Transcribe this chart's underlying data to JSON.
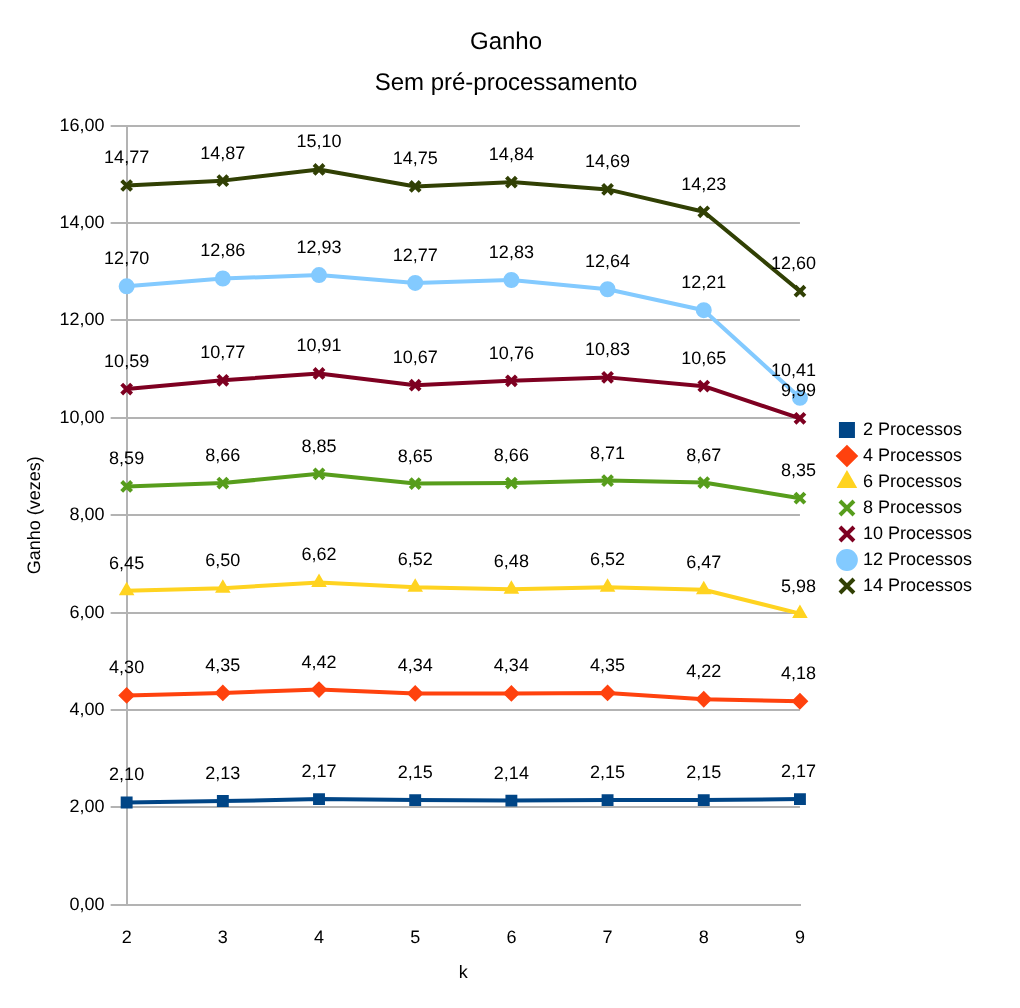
{
  "chart_data": {
    "type": "line",
    "title": "Ganho",
    "subtitle": "Sem pré-processamento",
    "xlabel": "k",
    "ylabel": "Ganho (vezes)",
    "categories": [
      "2",
      "3",
      "4",
      "5",
      "6",
      "7",
      "8",
      "9"
    ],
    "ylim": [
      0,
      16
    ],
    "yticks": [
      {
        "value": 0,
        "label": "0,00"
      },
      {
        "value": 2,
        "label": "2,00"
      },
      {
        "value": 4,
        "label": "4,00"
      },
      {
        "value": 6,
        "label": "6,00"
      },
      {
        "value": 8,
        "label": "8,00"
      },
      {
        "value": 10,
        "label": "10,00"
      },
      {
        "value": 12,
        "label": "12,00"
      },
      {
        "value": 14,
        "label": "14,00"
      },
      {
        "value": 16,
        "label": "16,00"
      }
    ],
    "grid": "y",
    "legend": "right",
    "series": [
      {
        "name": "2 Processos",
        "color": "#004586",
        "marker": "square",
        "values": [
          2.1,
          2.13,
          2.17,
          2.15,
          2.14,
          2.15,
          2.15,
          2.17
        ],
        "value_labels": [
          "2,10",
          "2,13",
          "2,17",
          "2,15",
          "2,14",
          "2,15",
          "2,15",
          "2,17"
        ]
      },
      {
        "name": "4 Processos",
        "color": "#ff420e",
        "marker": "diamond",
        "values": [
          4.3,
          4.35,
          4.42,
          4.34,
          4.34,
          4.35,
          4.22,
          4.18
        ],
        "value_labels": [
          "4,30",
          "4,35",
          "4,42",
          "4,34",
          "4,34",
          "4,35",
          "4,22",
          "4,18"
        ]
      },
      {
        "name": "6 Processos",
        "color": "#ffd320",
        "marker": "triangle",
        "values": [
          6.45,
          6.5,
          6.62,
          6.52,
          6.48,
          6.52,
          6.47,
          5.98
        ],
        "value_labels": [
          "6,45",
          "6,50",
          "6,62",
          "6,52",
          "6,48",
          "6,52",
          "6,47",
          "5,98"
        ]
      },
      {
        "name": "8 Processos",
        "color": "#579d1c",
        "marker": "cross",
        "values": [
          8.59,
          8.66,
          8.85,
          8.65,
          8.66,
          8.71,
          8.67,
          8.35
        ],
        "value_labels": [
          "8,59",
          "8,66",
          "8,85",
          "8,65",
          "8,66",
          "8,71",
          "8,67",
          "8,35"
        ]
      },
      {
        "name": "10 Processos",
        "color": "#7e0021",
        "marker": "cross",
        "values": [
          10.59,
          10.77,
          10.91,
          10.67,
          10.76,
          10.83,
          10.65,
          9.99
        ],
        "value_labels": [
          "10,59",
          "10,77",
          "10,91",
          "10,67",
          "10,76",
          "10,83",
          "10,65",
          "9,99"
        ]
      },
      {
        "name": "12 Processos",
        "color": "#83caff",
        "marker": "circle",
        "values": [
          12.7,
          12.86,
          12.93,
          12.77,
          12.83,
          12.64,
          12.21,
          10.41
        ],
        "value_labels": [
          "12,70",
          "12,86",
          "12,93",
          "12,77",
          "12,83",
          "12,64",
          "12,21",
          "10,41"
        ]
      },
      {
        "name": "14 Processos",
        "color": "#314004",
        "marker": "cross",
        "values": [
          14.77,
          14.87,
          15.1,
          14.75,
          14.84,
          14.69,
          14.23,
          12.6
        ],
        "value_labels": [
          "14,77",
          "14,87",
          "15,10",
          "14,75",
          "14,84",
          "14,69",
          "14,23",
          "12,60"
        ]
      }
    ]
  }
}
